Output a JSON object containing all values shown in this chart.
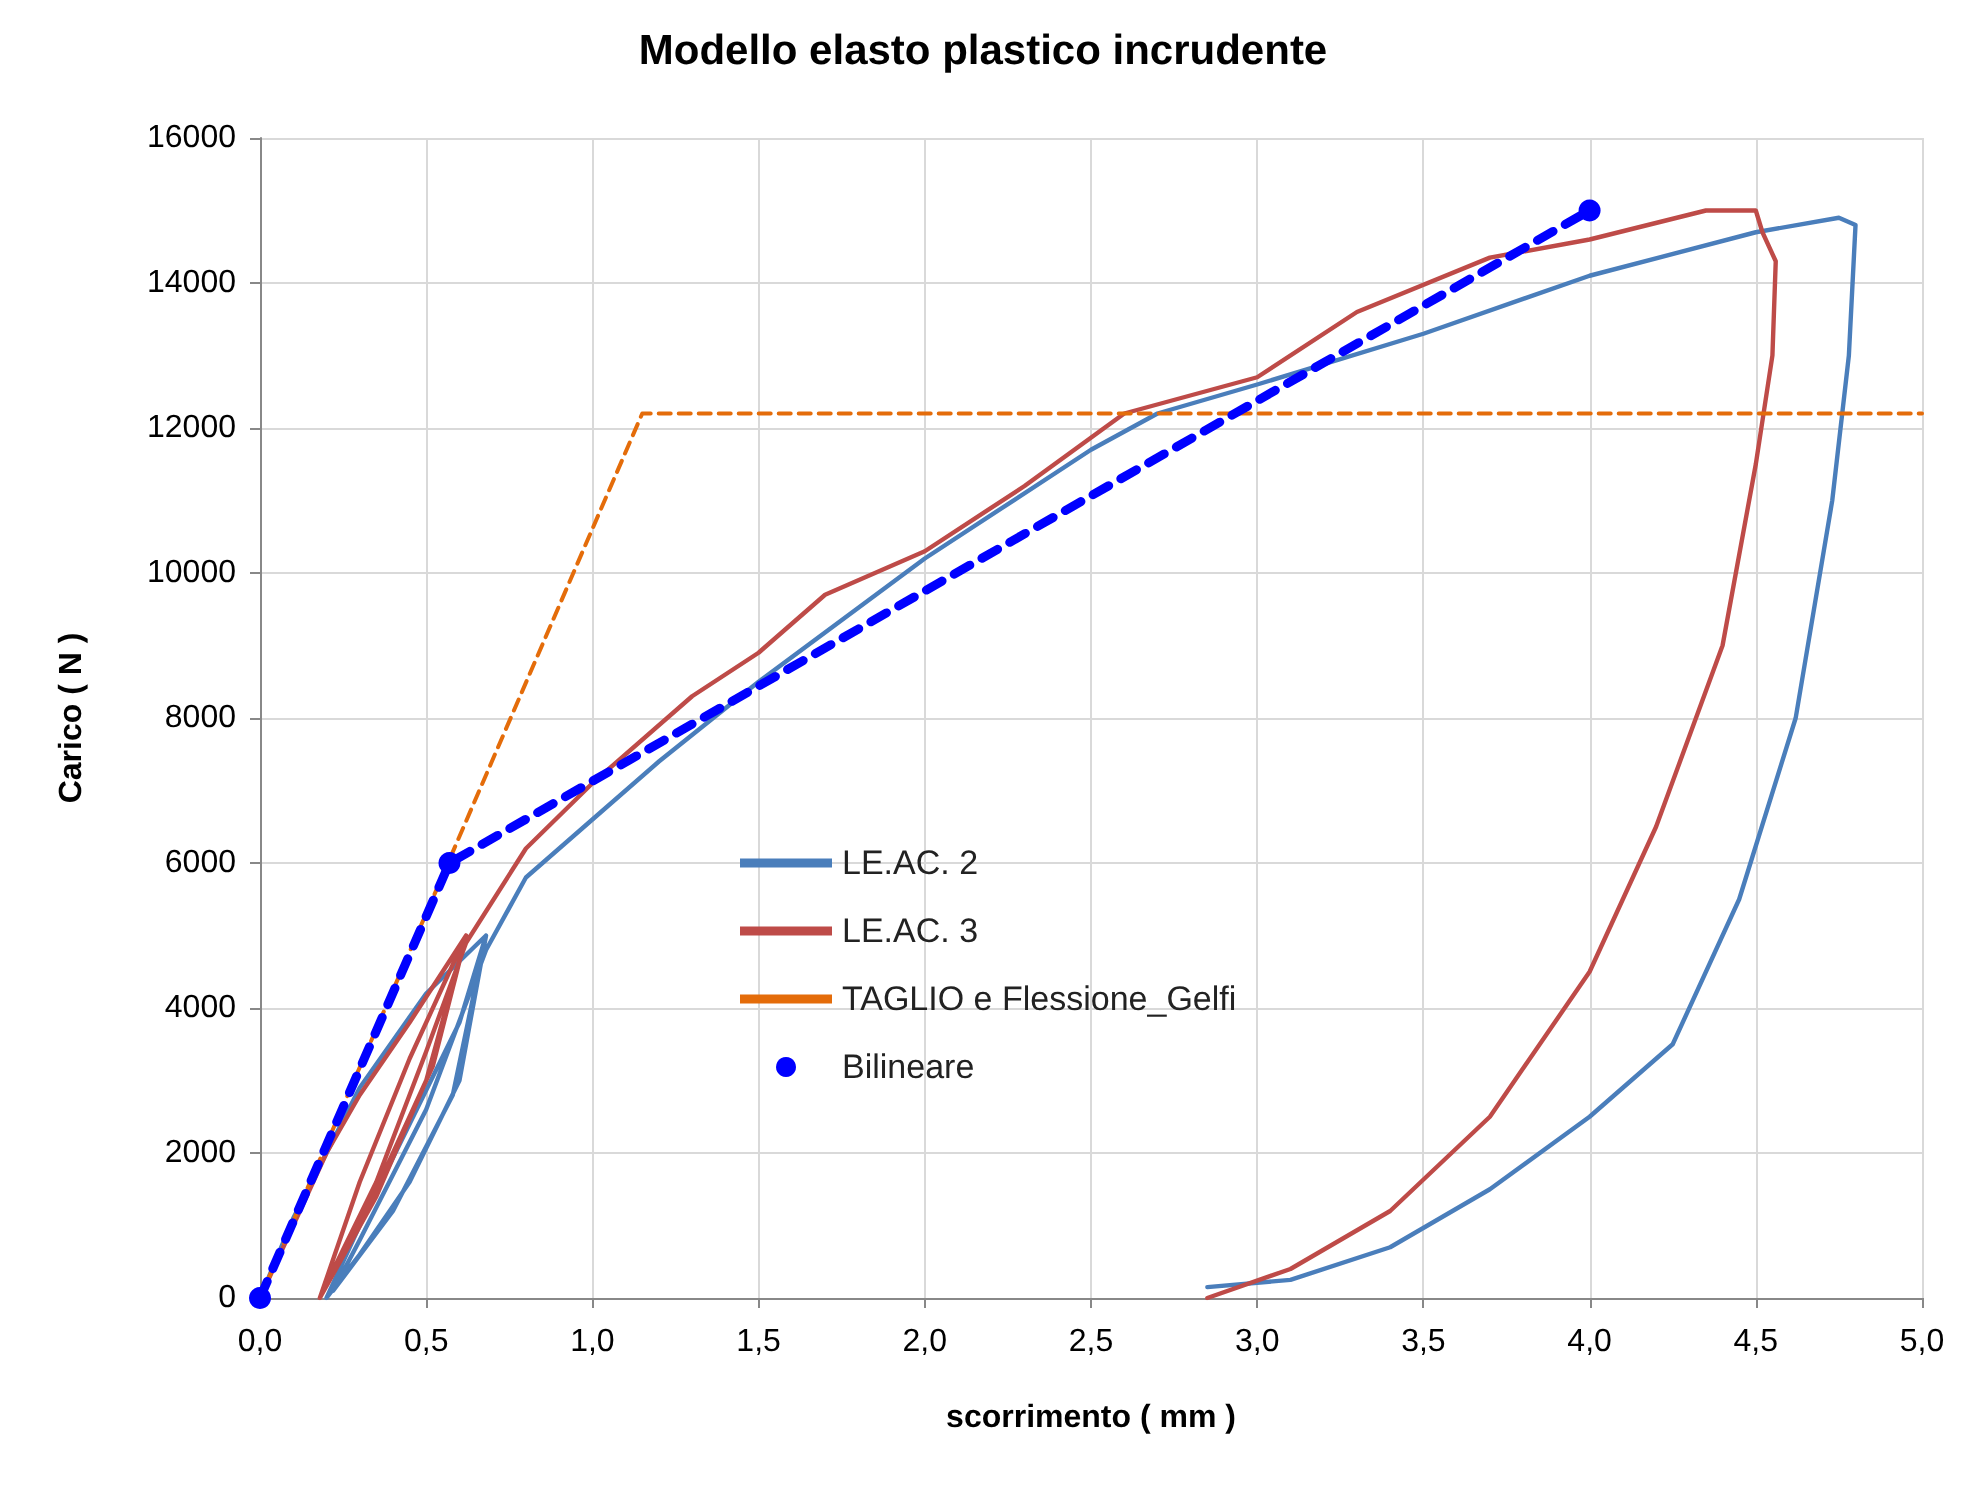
{
  "chart_data": {
    "type": "line",
    "title": "Modello elasto plastico incrudente",
    "xlabel": "scorrimento ( mm )",
    "ylabel": "Carico ( N )",
    "xlim": [
      0,
      5
    ],
    "xticks": [
      {
        "value": 0,
        "label": "0,0"
      },
      {
        "value": 0.5,
        "label": "0,5"
      },
      {
        "value": 1,
        "label": "1,0"
      },
      {
        "value": 1.5,
        "label": "1,5"
      },
      {
        "value": 2,
        "label": "2,0"
      },
      {
        "value": 2.5,
        "label": "2,5"
      },
      {
        "value": 3,
        "label": "3,0"
      },
      {
        "value": 3.5,
        "label": "3,5"
      },
      {
        "value": 4,
        "label": "4,0"
      },
      {
        "value": 4.5,
        "label": "4,5"
      },
      {
        "value": 5,
        "label": "5,0"
      }
    ],
    "ylim": [
      0,
      16000
    ],
    "yticks": [
      0,
      2000,
      4000,
      6000,
      8000,
      10000,
      12000,
      14000,
      16000
    ],
    "grid": true,
    "legend": "bottom",
    "marker": "none",
    "line_style": "solid",
    "series": [
      {
        "name": "LE.AC. 2",
        "color": "#4a7ebb",
        "x": [
          0,
          0.1,
          0.2,
          0.3,
          0.5,
          0.68,
          0.6,
          0.45,
          0.3,
          0.2,
          0.3,
          0.45,
          0.6,
          0.68,
          0.58,
          0.4,
          0.22,
          0.3,
          0.5,
          0.68,
          0.8,
          1.0,
          1.2,
          1.5,
          2.0,
          2.5,
          2.7,
          3.0,
          3.5,
          4.0,
          4.5,
          4.75,
          4.8,
          4.78,
          4.73,
          4.62,
          4.45,
          4.25,
          4.0,
          3.7,
          3.4,
          3.1,
          2.85
        ],
        "values": [
          0,
          1100,
          2000,
          2900,
          4200,
          5000,
          3000,
          1600,
          600,
          0,
          1000,
          2400,
          3800,
          5000,
          2800,
          1200,
          100,
          800,
          2600,
          4800,
          5800,
          6600,
          7400,
          8500,
          10200,
          11700,
          12200,
          12600,
          13300,
          14100,
          14700,
          14900,
          14800,
          13000,
          11000,
          8000,
          5500,
          3500,
          2500,
          1500,
          700,
          250,
          150
        ]
      },
      {
        "name": "LE.AC. 3",
        "color": "#be4b48",
        "x": [
          0,
          0.1,
          0.2,
          0.3,
          0.45,
          0.62,
          0.5,
          0.35,
          0.18,
          0.3,
          0.45,
          0.62,
          0.52,
          0.35,
          0.2,
          0.35,
          0.5,
          0.62,
          0.8,
          1.0,
          1.3,
          1.5,
          1.7,
          2.0,
          2.3,
          2.6,
          3.0,
          3.3,
          3.7,
          4.0,
          4.35,
          4.5,
          4.52,
          4.56,
          4.55,
          4.5,
          4.4,
          4.2,
          4.0,
          3.7,
          3.4,
          3.1,
          2.85
        ],
        "values": [
          0,
          1000,
          2000,
          2800,
          3800,
          5000,
          3000,
          1400,
          0,
          1600,
          3300,
          5000,
          3200,
          1500,
          200,
          1600,
          3400,
          4900,
          6200,
          7100,
          8300,
          8900,
          9700,
          10300,
          11200,
          12200,
          12700,
          13600,
          14350,
          14600,
          15000,
          15000,
          14700,
          14300,
          13000,
          11500,
          9000,
          6500,
          4500,
          2500,
          1200,
          400,
          0
        ]
      },
      {
        "name": "TAGLIO e Flessione_Gelfi",
        "color": "#e46c0a",
        "line_style": "dashed",
        "x": [
          0,
          1.15,
          5
        ],
        "values": [
          0,
          12200,
          12200
        ]
      },
      {
        "name": "Bilineare",
        "color": "#0000ff",
        "line_style": "dashed",
        "marker": "circle",
        "x": [
          0,
          0.57,
          4.0
        ],
        "values": [
          0,
          6000,
          15000
        ]
      }
    ]
  }
}
